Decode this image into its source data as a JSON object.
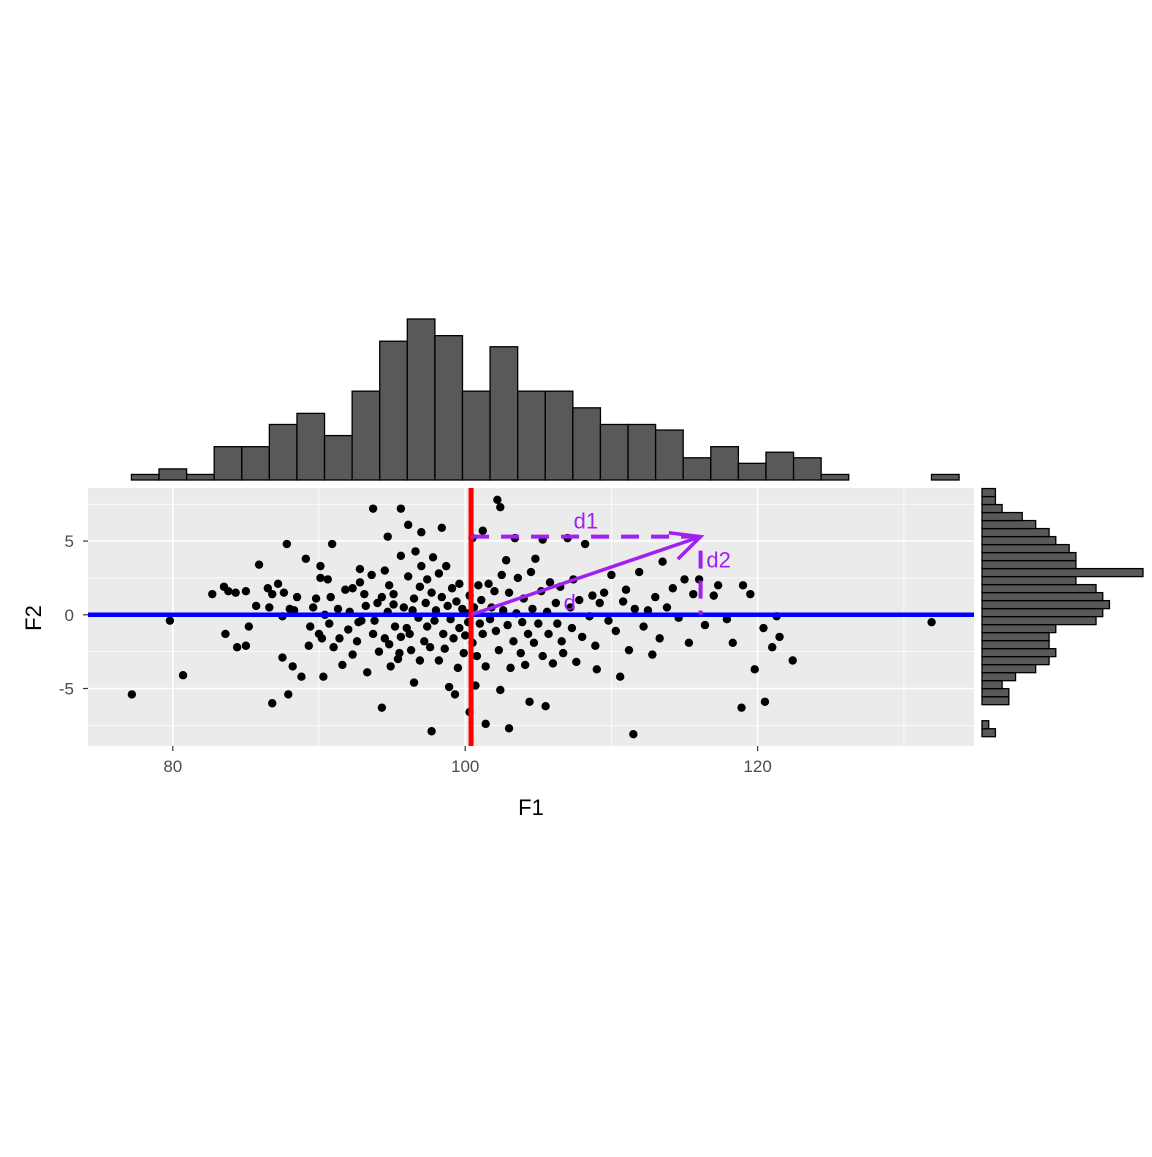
{
  "chart_data": {
    "type": "scatter",
    "x_axis": {
      "label": "F1",
      "lim": [
        74.2,
        134.8
      ],
      "ticks": [
        80,
        100,
        120
      ]
    },
    "y_axis": {
      "label": "F2",
      "lim": [
        -8.9,
        8.6
      ],
      "ticks": [
        -5,
        0,
        5
      ]
    },
    "grid": true,
    "reference_lines": {
      "vertical": {
        "x": 100.4,
        "color": "#ff0000"
      },
      "horizontal": {
        "y": 0,
        "color": "#0000ff"
      }
    },
    "annotations": {
      "color": "#a020f0",
      "origin": [
        100.4,
        0
      ],
      "vector_end": [
        116.1,
        5.3
      ],
      "labels": {
        "d": "d",
        "d1": "d1",
        "d2": "d2"
      }
    },
    "colors": {
      "points": "#000000",
      "hist_fill": "#595959",
      "panel_bg": "#ebebeb"
    },
    "top_histogram": {
      "bin_width": 1.887,
      "start": 77.17,
      "counts": [
        1,
        2,
        1,
        6,
        6,
        10,
        12,
        8,
        16,
        25,
        29,
        26,
        16,
        24,
        16,
        16,
        13,
        10,
        10,
        9,
        4,
        6,
        3,
        5,
        4,
        1,
        0,
        0,
        0,
        1
      ]
    },
    "right_histogram": {
      "bin_width": 0.543,
      "start": -8.27,
      "counts": [
        2,
        1,
        0,
        0,
        4,
        4,
        3,
        5,
        8,
        10,
        11,
        10,
        10,
        11,
        17,
        18,
        19,
        18,
        17,
        14,
        24,
        14,
        14,
        13,
        11,
        10,
        8,
        6,
        3,
        2,
        2
      ]
    },
    "points": [
      [
        77.2,
        -5.4
      ],
      [
        79.8,
        -0.4
      ],
      [
        80.7,
        -4.1
      ],
      [
        82.7,
        1.4
      ],
      [
        83.5,
        1.9
      ],
      [
        83.6,
        -1.3
      ],
      [
        83.8,
        1.6
      ],
      [
        84.3,
        1.5
      ],
      [
        84.4,
        -2.2
      ],
      [
        85.0,
        1.6
      ],
      [
        85.0,
        -2.1
      ],
      [
        85.2,
        -0.8
      ],
      [
        85.7,
        0.6
      ],
      [
        85.9,
        3.4
      ],
      [
        86.5,
        1.8
      ],
      [
        86.6,
        0.5
      ],
      [
        86.8,
        1.4
      ],
      [
        86.8,
        -6.0
      ],
      [
        87.2,
        2.1
      ],
      [
        87.5,
        -0.1
      ],
      [
        87.5,
        -2.9
      ],
      [
        87.6,
        1.5
      ],
      [
        87.8,
        4.8
      ],
      [
        87.9,
        -5.4
      ],
      [
        88.0,
        0.4
      ],
      [
        88.2,
        -3.5
      ],
      [
        88.3,
        0.3
      ],
      [
        88.5,
        1.2
      ],
      [
        88.8,
        -4.2
      ],
      [
        89.1,
        3.8
      ],
      [
        89.3,
        -2.1
      ],
      [
        89.4,
        -0.8
      ],
      [
        89.6,
        0.5
      ],
      [
        89.8,
        1.1
      ],
      [
        90.0,
        -1.3
      ],
      [
        90.1,
        3.3
      ],
      [
        90.1,
        2.5
      ],
      [
        90.2,
        -1.6
      ],
      [
        90.3,
        -4.2
      ],
      [
        90.4,
        0.0
      ],
      [
        90.6,
        2.4
      ],
      [
        90.7,
        -0.6
      ],
      [
        90.8,
        1.2
      ],
      [
        90.9,
        4.8
      ],
      [
        91.0,
        -2.2
      ],
      [
        91.3,
        0.4
      ],
      [
        91.4,
        -1.6
      ],
      [
        91.6,
        -3.4
      ],
      [
        91.8,
        1.7
      ],
      [
        92.0,
        -1.0
      ],
      [
        92.1,
        0.2
      ],
      [
        92.3,
        -2.7
      ],
      [
        92.3,
        1.8
      ],
      [
        92.6,
        -1.8
      ],
      [
        92.7,
        -0.5
      ],
      [
        92.8,
        3.1
      ],
      [
        92.8,
        2.2
      ],
      [
        92.9,
        -0.4
      ],
      [
        93.1,
        1.4
      ],
      [
        93.2,
        0.6
      ],
      [
        93.3,
        -3.9
      ],
      [
        93.6,
        2.7
      ],
      [
        93.7,
        7.2
      ],
      [
        93.7,
        -1.3
      ],
      [
        93.8,
        -0.4
      ],
      [
        94.0,
        0.8
      ],
      [
        94.1,
        -2.5
      ],
      [
        94.3,
        1.2
      ],
      [
        94.3,
        -6.3
      ],
      [
        94.5,
        3.0
      ],
      [
        94.5,
        -1.6
      ],
      [
        94.7,
        5.3
      ],
      [
        94.7,
        0.2
      ],
      [
        94.8,
        2.0
      ],
      [
        94.8,
        -2.0
      ],
      [
        94.9,
        -3.5
      ],
      [
        95.1,
        1.4
      ],
      [
        95.1,
        0.7
      ],
      [
        95.2,
        -0.8
      ],
      [
        95.4,
        -3.0
      ],
      [
        95.5,
        -2.6
      ],
      [
        95.6,
        7.2
      ],
      [
        95.6,
        4.0
      ],
      [
        95.6,
        -1.5
      ],
      [
        95.8,
        0.5
      ],
      [
        96.0,
        -0.9
      ],
      [
        96.1,
        6.1
      ],
      [
        96.1,
        2.6
      ],
      [
        96.2,
        -1.3
      ],
      [
        96.3,
        -2.4
      ],
      [
        96.4,
        0.3
      ],
      [
        96.5,
        1.1
      ],
      [
        96.5,
        -4.6
      ],
      [
        96.6,
        4.3
      ],
      [
        96.8,
        -0.2
      ],
      [
        96.9,
        1.9
      ],
      [
        96.9,
        -3.1
      ],
      [
        97.0,
        5.6
      ],
      [
        97.0,
        3.3
      ],
      [
        97.2,
        -1.8
      ],
      [
        97.3,
        0.8
      ],
      [
        97.4,
        -0.8
      ],
      [
        97.4,
        2.4
      ],
      [
        97.6,
        -2.2
      ],
      [
        97.7,
        1.5
      ],
      [
        97.7,
        -7.9
      ],
      [
        97.8,
        3.9
      ],
      [
        97.9,
        -0.4
      ],
      [
        98.0,
        0.3
      ],
      [
        98.2,
        2.8
      ],
      [
        98.2,
        -3.1
      ],
      [
        98.4,
        5.9
      ],
      [
        98.4,
        1.2
      ],
      [
        98.5,
        -1.3
      ],
      [
        98.6,
        -2.3
      ],
      [
        98.7,
        3.3
      ],
      [
        98.8,
        0.6
      ],
      [
        98.9,
        -4.9
      ],
      [
        99.0,
        -0.3
      ],
      [
        99.1,
        1.8
      ],
      [
        99.2,
        -1.6
      ],
      [
        99.3,
        -5.4
      ],
      [
        99.4,
        0.9
      ],
      [
        99.5,
        -3.6
      ],
      [
        99.6,
        2.1
      ],
      [
        99.6,
        -0.9
      ],
      [
        99.8,
        0.4
      ],
      [
        99.9,
        -2.6
      ],
      [
        100.0,
        -1.4
      ],
      [
        100.1,
        0.1
      ],
      [
        100.2,
        -0.5
      ],
      [
        100.3,
        1.3
      ],
      [
        100.3,
        -6.6
      ],
      [
        100.5,
        -1.9
      ],
      [
        100.5,
        5.2
      ],
      [
        100.6,
        0.5
      ],
      [
        100.7,
        -4.8
      ],
      [
        100.8,
        -2.8
      ],
      [
        100.9,
        2.0
      ],
      [
        101.0,
        -0.6
      ],
      [
        101.1,
        1.0
      ],
      [
        101.2,
        -1.3
      ],
      [
        101.2,
        5.7
      ],
      [
        101.4,
        -3.5
      ],
      [
        101.4,
        -7.4
      ],
      [
        101.6,
        2.1
      ],
      [
        101.7,
        -0.3
      ],
      [
        101.8,
        0.5
      ],
      [
        102.0,
        1.6
      ],
      [
        102.1,
        -1.1
      ],
      [
        102.2,
        7.8
      ],
      [
        102.3,
        -2.4
      ],
      [
        102.4,
        7.3
      ],
      [
        102.4,
        -5.1
      ],
      [
        102.5,
        2.7
      ],
      [
        102.6,
        0.3
      ],
      [
        102.8,
        3.7
      ],
      [
        102.9,
        -0.7
      ],
      [
        103.0,
        -7.7
      ],
      [
        103.0,
        1.5
      ],
      [
        103.1,
        -3.6
      ],
      [
        103.3,
        -1.8
      ],
      [
        103.4,
        5.2
      ],
      [
        103.5,
        0.1
      ],
      [
        103.6,
        2.5
      ],
      [
        103.8,
        -2.6
      ],
      [
        103.9,
        -0.5
      ],
      [
        104.0,
        1.1
      ],
      [
        104.1,
        -3.4
      ],
      [
        104.3,
        -1.3
      ],
      [
        104.4,
        -5.9
      ],
      [
        104.5,
        2.9
      ],
      [
        104.6,
        0.4
      ],
      [
        104.7,
        -1.9
      ],
      [
        104.8,
        3.8
      ],
      [
        105.0,
        -0.6
      ],
      [
        105.2,
        1.6
      ],
      [
        105.3,
        -2.8
      ],
      [
        105.3,
        5.1
      ],
      [
        105.5,
        -6.2
      ],
      [
        105.6,
        0.2
      ],
      [
        105.7,
        -1.3
      ],
      [
        105.8,
        2.2
      ],
      [
        106.0,
        -3.3
      ],
      [
        106.2,
        0.8
      ],
      [
        106.3,
        -0.6
      ],
      [
        106.5,
        1.9
      ],
      [
        106.6,
        -1.8
      ],
      [
        106.7,
        -2.6
      ],
      [
        107.0,
        5.2
      ],
      [
        107.2,
        0.5
      ],
      [
        107.3,
        -0.9
      ],
      [
        107.4,
        2.4
      ],
      [
        107.6,
        -3.2
      ],
      [
        107.8,
        1.0
      ],
      [
        108.0,
        -1.5
      ],
      [
        108.2,
        4.8
      ],
      [
        108.5,
        -0.1
      ],
      [
        108.7,
        1.3
      ],
      [
        108.9,
        -2.1
      ],
      [
        109.0,
        -3.7
      ],
      [
        109.2,
        0.8
      ],
      [
        109.5,
        1.5
      ],
      [
        109.8,
        -0.4
      ],
      [
        110.0,
        2.7
      ],
      [
        110.3,
        -1.1
      ],
      [
        110.6,
        -4.2
      ],
      [
        110.8,
        0.9
      ],
      [
        111.0,
        1.7
      ],
      [
        111.2,
        -2.4
      ],
      [
        111.5,
        -8.1
      ],
      [
        111.6,
        0.4
      ],
      [
        111.9,
        2.9
      ],
      [
        112.2,
        -0.8
      ],
      [
        112.5,
        0.3
      ],
      [
        112.8,
        -2.7
      ],
      [
        113.0,
        1.2
      ],
      [
        113.3,
        -1.6
      ],
      [
        113.5,
        3.6
      ],
      [
        113.8,
        0.5
      ],
      [
        114.2,
        1.8
      ],
      [
        114.6,
        -0.2
      ],
      [
        115.0,
        2.4
      ],
      [
        115.3,
        -1.9
      ],
      [
        115.6,
        1.4
      ],
      [
        116.0,
        2.4
      ],
      [
        116.4,
        -0.7
      ],
      [
        117.0,
        1.3
      ],
      [
        117.3,
        2.0
      ],
      [
        117.9,
        -0.3
      ],
      [
        118.3,
        -1.9
      ],
      [
        118.9,
        -6.3
      ],
      [
        119.0,
        2.0
      ],
      [
        119.5,
        1.4
      ],
      [
        119.8,
        -3.7
      ],
      [
        120.4,
        -0.9
      ],
      [
        120.5,
        -5.9
      ],
      [
        121.0,
        -2.2
      ],
      [
        121.3,
        -0.1
      ],
      [
        121.5,
        -1.5
      ],
      [
        122.4,
        -3.1
      ],
      [
        131.9,
        -0.5
      ]
    ]
  }
}
